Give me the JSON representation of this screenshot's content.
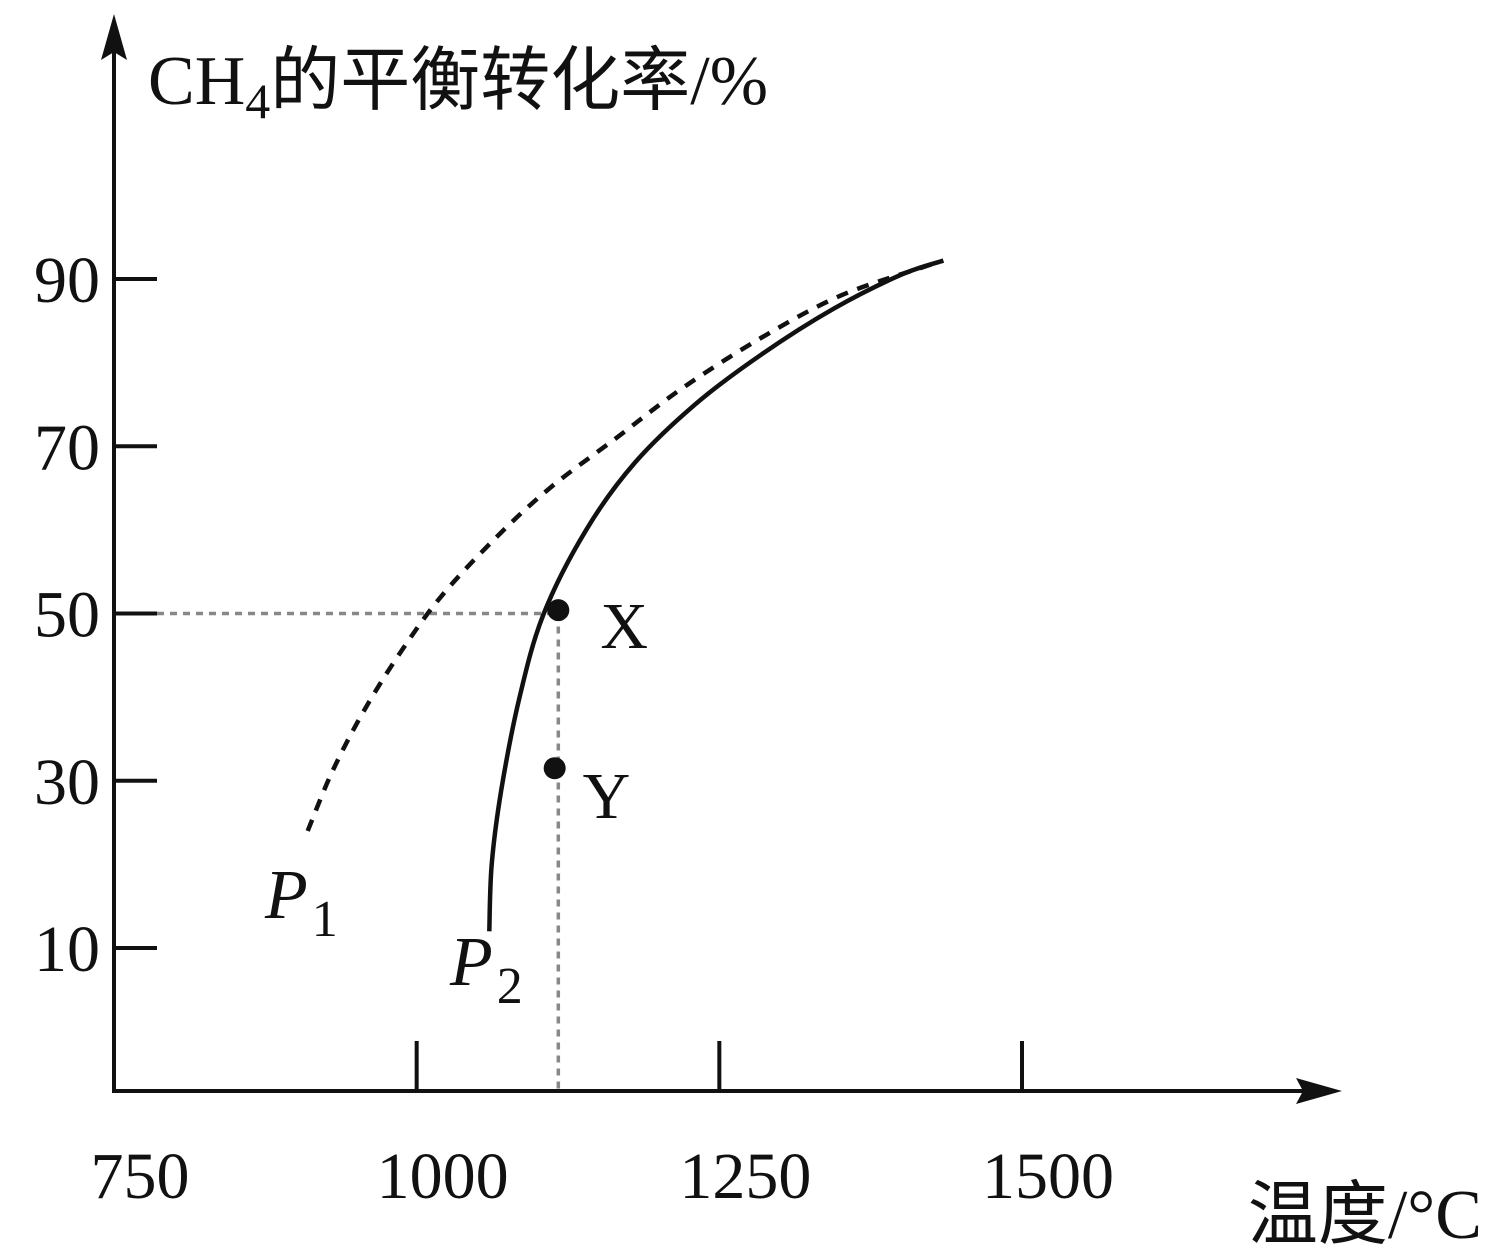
{
  "chart_data": {
    "type": "line",
    "ylabel_main": "CH",
    "ylabel_sub": "4",
    "ylabel_rest": "的平衡转化率/%",
    "xlabel": "温度/°C",
    "x_ticks": [
      750,
      1000,
      1250,
      1500
    ],
    "y_ticks": [
      10,
      30,
      50,
      70,
      90
    ],
    "xlim": [
      750,
      1750
    ],
    "ylim": [
      -7,
      110
    ],
    "series": [
      {
        "name": "P",
        "subscript": "1",
        "style": "dashed",
        "points": [
          [
            910,
            24
          ],
          [
            930,
            31
          ],
          [
            955,
            38
          ],
          [
            985,
            45
          ],
          [
            1020,
            52
          ],
          [
            1065,
            59
          ],
          [
            1110,
            65
          ],
          [
            1165,
            71
          ],
          [
            1220,
            77
          ],
          [
            1285,
            83
          ],
          [
            1350,
            88
          ],
          [
            1420,
            91.5
          ],
          [
            1435,
            92.2
          ]
        ]
      },
      {
        "name": "P",
        "subscript": "2",
        "style": "solid",
        "points": [
          [
            1060,
            12
          ],
          [
            1062,
            20
          ],
          [
            1070,
            29
          ],
          [
            1085,
            40
          ],
          [
            1105,
            50
          ],
          [
            1140,
            60
          ],
          [
            1180,
            68
          ],
          [
            1230,
            75
          ],
          [
            1285,
            81
          ],
          [
            1345,
            86.5
          ],
          [
            1400,
            90.5
          ],
          [
            1435,
            92.2
          ]
        ]
      }
    ],
    "reference_lines": [
      {
        "type": "horizontal",
        "y": 50,
        "x_from": 750,
        "x_to": 1117
      },
      {
        "type": "vertical",
        "x": 1117,
        "y_from": -7,
        "y_to": 50
      }
    ],
    "points": [
      {
        "label": "X",
        "x": 1117,
        "y": 50.4
      },
      {
        "label": "Y",
        "x": 1114,
        "y": 31.5
      }
    ],
    "grid": false,
    "legend": "none"
  }
}
